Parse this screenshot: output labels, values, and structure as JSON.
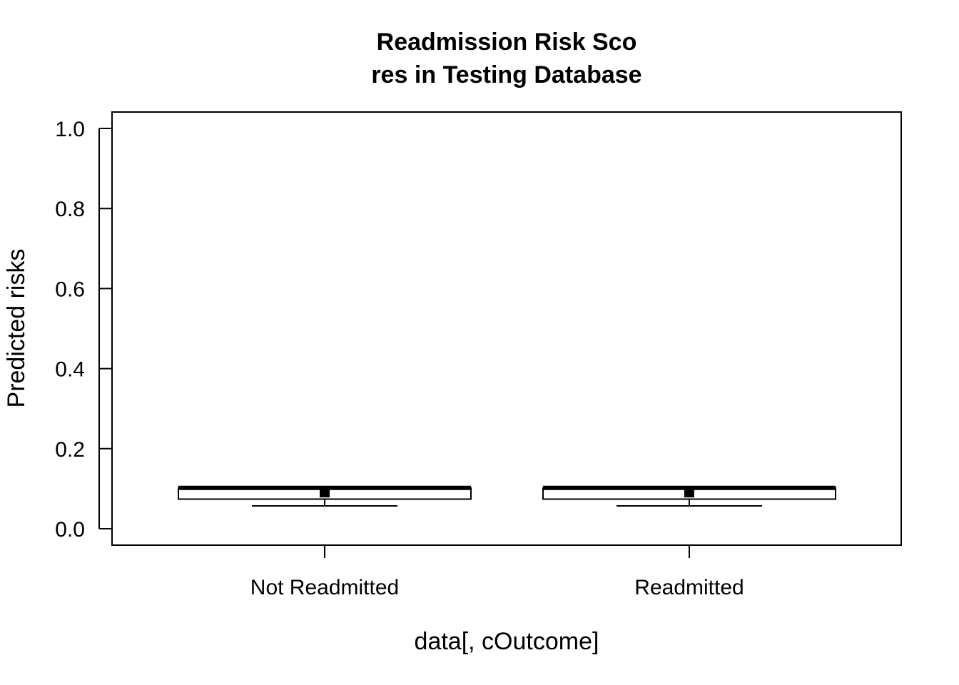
{
  "chart_data": {
    "type": "boxplot",
    "title_lines": [
      "Readmission Risk Sco",
      "res in Testing Database"
    ],
    "xlabel": "data[, cOutcome]",
    "ylabel": "Predicted risks",
    "ylim": [
      0,
      1
    ],
    "y_ticks": [
      "0.0",
      "0.2",
      "0.4",
      "0.6",
      "0.8",
      "1.0"
    ],
    "y_tick_values": [
      0,
      0.2,
      0.4,
      0.6,
      0.8,
      1.0
    ],
    "categories": [
      "Not Readmitted",
      "Readmitted"
    ],
    "boxes": [
      {
        "category": "Not Readmitted",
        "whisker_low": 0.057,
        "q1": 0.074,
        "median": 0.102,
        "q3": 0.102,
        "whisker_high": 0.102,
        "mean": 0.089
      },
      {
        "category": "Readmitted",
        "whisker_low": 0.057,
        "q1": 0.074,
        "median": 0.102,
        "q3": 0.102,
        "whisker_high": 0.102,
        "mean": 0.089
      }
    ],
    "grid": false,
    "legend": "none"
  }
}
